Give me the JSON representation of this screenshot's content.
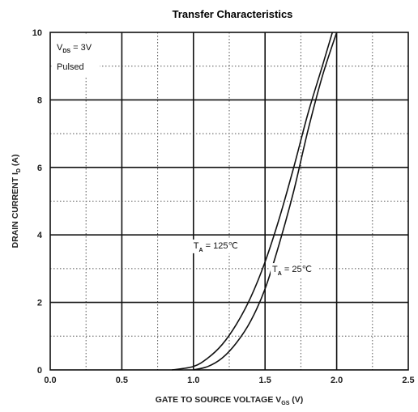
{
  "chart_data": {
    "type": "line",
    "title": "Transfer Characteristics",
    "xlabel": {
      "prefix": "GATE TO SOURCE VOLTAGE V",
      "sub": "GS",
      "suffix": " (V)"
    },
    "ylabel": {
      "prefix": "DRAIN CURRENT I",
      "sub": "D",
      "suffix": " (A)"
    },
    "xlim": [
      0,
      2.5
    ],
    "ylim": [
      0,
      10
    ],
    "x_ticks": [
      "0.0",
      "0.5",
      "1.0",
      "1.5",
      "2.0",
      "2.5"
    ],
    "y_ticks": [
      "0",
      "2",
      "4",
      "6",
      "8",
      "10"
    ],
    "grid": true,
    "conditions": [
      {
        "prefix": "V",
        "sub": "DS",
        "suffix": " = 3V"
      },
      {
        "prefix": "Pulsed",
        "sub": "",
        "suffix": ""
      }
    ],
    "series": [
      {
        "name_parts": {
          "prefix": "T",
          "sub": "A",
          "suffix": " = 125℃"
        },
        "x": [
          0.85,
          1.0,
          1.1,
          1.2,
          1.3,
          1.4,
          1.5,
          1.6,
          1.7,
          1.8,
          1.9,
          1.97
        ],
        "y": [
          0.0,
          0.1,
          0.35,
          0.75,
          1.35,
          2.15,
          3.2,
          4.5,
          6.0,
          7.6,
          9.0,
          10.0
        ]
      },
      {
        "name_parts": {
          "prefix": "T",
          "sub": "A",
          "suffix": " = 25℃"
        },
        "x": [
          1.0,
          1.1,
          1.2,
          1.3,
          1.4,
          1.5,
          1.6,
          1.7,
          1.8,
          1.9,
          2.0
        ],
        "y": [
          0.0,
          0.1,
          0.35,
          0.8,
          1.45,
          2.4,
          3.75,
          5.3,
          7.1,
          8.7,
          10.0
        ]
      }
    ]
  }
}
